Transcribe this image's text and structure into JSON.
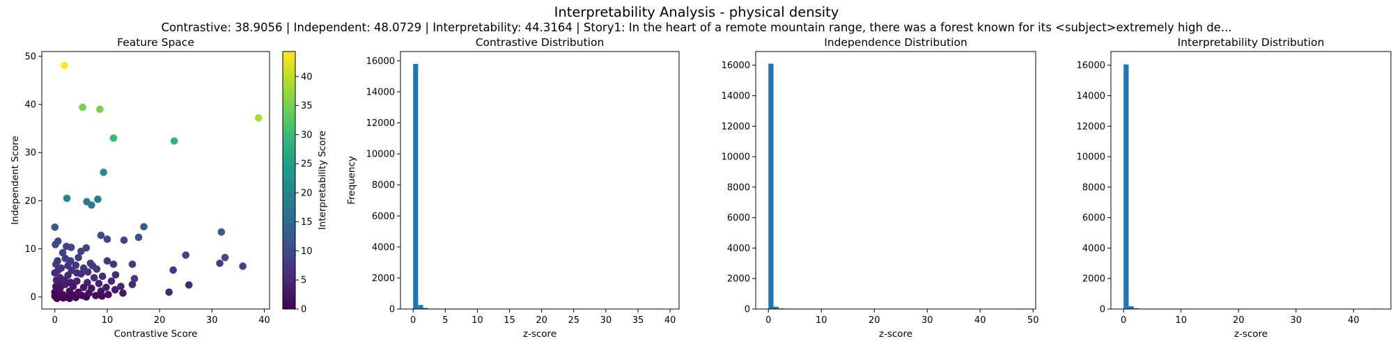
{
  "figure": {
    "title": "Interpretability Analysis - physical density",
    "subtitle": "Contrastive: 38.9056 | Independent: 48.0729 | Interpretability: 44.3164 | Story1: In the heart of a remote mountain range, there was a forest known for its <subject>extremely high de..."
  },
  "chart_data": [
    {
      "type": "scatter",
      "title": "Feature Space",
      "xlabel": "Contrastive Score",
      "ylabel": "Independent Score",
      "xlim": [
        -2.5,
        41
      ],
      "ylim": [
        -2.5,
        51
      ],
      "xticks": [
        0,
        10,
        20,
        30,
        40
      ],
      "yticks": [
        0,
        10,
        20,
        30,
        40,
        50
      ],
      "grid": false,
      "colorbar": {
        "label": "Interpretability Score",
        "colormap": "viridis",
        "range": [
          0,
          44.3
        ],
        "ticks": [
          0,
          5,
          10,
          15,
          20,
          25,
          30,
          35,
          40
        ]
      },
      "points": [
        {
          "x": 1.8,
          "y": 48.1,
          "c": 44.3
        },
        {
          "x": 38.9,
          "y": 37.2,
          "c": 38.5
        },
        {
          "x": 5.3,
          "y": 39.4,
          "c": 35.0
        },
        {
          "x": 8.6,
          "y": 39.0,
          "c": 35.0
        },
        {
          "x": 11.2,
          "y": 33.0,
          "c": 30.0
        },
        {
          "x": 22.8,
          "y": 32.4,
          "c": 29.0
        },
        {
          "x": 9.3,
          "y": 25.9,
          "c": 22.0
        },
        {
          "x": 2.3,
          "y": 20.5,
          "c": 20.0
        },
        {
          "x": 6.1,
          "y": 19.8,
          "c": 19.0
        },
        {
          "x": 8.2,
          "y": 20.3,
          "c": 19.0
        },
        {
          "x": 7.0,
          "y": 19.1,
          "c": 18.0
        },
        {
          "x": 17.0,
          "y": 14.6,
          "c": 13.0
        },
        {
          "x": 31.8,
          "y": 13.5,
          "c": 13.0
        },
        {
          "x": 0.0,
          "y": 14.5,
          "c": 12.0
        },
        {
          "x": 16.0,
          "y": 12.4,
          "c": 11.0
        },
        {
          "x": 8.8,
          "y": 12.8,
          "c": 10.0
        },
        {
          "x": 13.2,
          "y": 11.8,
          "c": 10.0
        },
        {
          "x": 10.0,
          "y": 12.0,
          "c": 9.5
        },
        {
          "x": 0.6,
          "y": 11.6,
          "c": 10.0
        },
        {
          "x": 0.1,
          "y": 10.9,
          "c": 9.5
        },
        {
          "x": 2.2,
          "y": 10.5,
          "c": 9.0
        },
        {
          "x": 3.1,
          "y": 10.3,
          "c": 9.0
        },
        {
          "x": 6.0,
          "y": 10.2,
          "c": 9.0
        },
        {
          "x": 5.0,
          "y": 9.5,
          "c": 8.5
        },
        {
          "x": 1.5,
          "y": 9.2,
          "c": 8.5
        },
        {
          "x": 35.9,
          "y": 6.4,
          "c": 9.0
        },
        {
          "x": 32.5,
          "y": 8.2,
          "c": 10.0
        },
        {
          "x": 31.5,
          "y": 7.0,
          "c": 9.0
        },
        {
          "x": 25.0,
          "y": 8.7,
          "c": 9.0
        },
        {
          "x": 14.8,
          "y": 6.8,
          "c": 8.0
        },
        {
          "x": 22.6,
          "y": 5.6,
          "c": 7.5
        },
        {
          "x": 15.2,
          "y": 3.8,
          "c": 7.0
        },
        {
          "x": 10.0,
          "y": 7.5,
          "c": 7.0
        },
        {
          "x": 11.2,
          "y": 6.8,
          "c": 7.0
        },
        {
          "x": 7.2,
          "y": 6.5,
          "c": 7.0
        },
        {
          "x": 8.0,
          "y": 5.8,
          "c": 7.0
        },
        {
          "x": 4.5,
          "y": 8.2,
          "c": 7.5
        },
        {
          "x": 3.0,
          "y": 7.5,
          "c": 7.5
        },
        {
          "x": 2.0,
          "y": 8.0,
          "c": 8.0
        },
        {
          "x": 0.5,
          "y": 7.5,
          "c": 7.0
        },
        {
          "x": 0.2,
          "y": 6.8,
          "c": 7.0
        },
        {
          "x": 1.2,
          "y": 6.0,
          "c": 6.5
        },
        {
          "x": 4.0,
          "y": 6.6,
          "c": 6.5
        },
        {
          "x": 6.3,
          "y": 5.2,
          "c": 6.0
        },
        {
          "x": 9.1,
          "y": 4.3,
          "c": 5.5
        },
        {
          "x": 11.6,
          "y": 4.6,
          "c": 5.5
        },
        {
          "x": 10.8,
          "y": 3.3,
          "c": 5.0
        },
        {
          "x": 12.6,
          "y": 2.2,
          "c": 4.5
        },
        {
          "x": 14.8,
          "y": 2.6,
          "c": 5.0
        },
        {
          "x": 25.6,
          "y": 2.5,
          "c": 5.0
        },
        {
          "x": 21.8,
          "y": 1.0,
          "c": 4.5
        },
        {
          "x": 3.2,
          "y": 5.5,
          "c": 6.0
        },
        {
          "x": 5.0,
          "y": 4.8,
          "c": 5.5
        },
        {
          "x": 7.5,
          "y": 4.0,
          "c": 5.0
        },
        {
          "x": 2.5,
          "y": 4.5,
          "c": 5.0
        },
        {
          "x": 1.0,
          "y": 4.0,
          "c": 4.5
        },
        {
          "x": 0.3,
          "y": 3.5,
          "c": 4.0
        },
        {
          "x": 4.2,
          "y": 3.3,
          "c": 4.0
        },
        {
          "x": 6.2,
          "y": 3.0,
          "c": 4.0
        },
        {
          "x": 8.4,
          "y": 2.8,
          "c": 4.0
        },
        {
          "x": 9.8,
          "y": 2.0,
          "c": 3.5
        },
        {
          "x": 11.5,
          "y": 1.5,
          "c": 3.0
        },
        {
          "x": 13.0,
          "y": 0.8,
          "c": 3.0
        },
        {
          "x": 2.0,
          "y": 2.6,
          "c": 3.0
        },
        {
          "x": 3.5,
          "y": 2.2,
          "c": 2.5
        },
        {
          "x": 5.5,
          "y": 2.0,
          "c": 2.5
        },
        {
          "x": 7.0,
          "y": 1.8,
          "c": 2.5
        },
        {
          "x": 8.8,
          "y": 1.2,
          "c": 2.0
        },
        {
          "x": 1.0,
          "y": 1.8,
          "c": 2.0
        },
        {
          "x": 0.2,
          "y": 2.2,
          "c": 2.0
        },
        {
          "x": 2.8,
          "y": 1.2,
          "c": 1.5
        },
        {
          "x": 4.5,
          "y": 1.0,
          "c": 1.5
        },
        {
          "x": 6.5,
          "y": 0.8,
          "c": 1.2
        },
        {
          "x": 10.2,
          "y": 0.5,
          "c": 1.5
        },
        {
          "x": 1.5,
          "y": 0.5,
          "c": 1.0
        },
        {
          "x": 0.5,
          "y": 0.8,
          "c": 1.0
        },
        {
          "x": 3.5,
          "y": 0.4,
          "c": 0.8
        },
        {
          "x": 5.2,
          "y": 0.3,
          "c": 0.8
        },
        {
          "x": 7.8,
          "y": 0.3,
          "c": 0.8
        },
        {
          "x": 0.0,
          "y": 0.2,
          "c": 0.5
        },
        {
          "x": 1.0,
          "y": 0.1,
          "c": 0.5
        },
        {
          "x": 2.2,
          "y": 0.0,
          "c": 0.5
        },
        {
          "x": 4.0,
          "y": -0.1,
          "c": 0.5
        },
        {
          "x": 6.0,
          "y": 0.0,
          "c": 0.6
        },
        {
          "x": 9.0,
          "y": 0.2,
          "c": 0.8
        },
        {
          "x": 0.4,
          "y": -0.3,
          "c": 0.3
        },
        {
          "x": 1.6,
          "y": -0.2,
          "c": 0.3
        },
        {
          "x": 2.8,
          "y": -0.3,
          "c": 0.3
        },
        {
          "x": 0.0,
          "y": 1.0,
          "c": 1.0
        },
        {
          "x": 0.8,
          "y": 2.8,
          "c": 2.5
        },
        {
          "x": 1.8,
          "y": 3.5,
          "c": 3.5
        },
        {
          "x": 3.0,
          "y": 3.0,
          "c": 3.0
        },
        {
          "x": 0.0,
          "y": 5.0,
          "c": 5.0
        },
        {
          "x": 0.6,
          "y": 5.5,
          "c": 5.5
        },
        {
          "x": 5.5,
          "y": 6.0,
          "c": 6.5
        },
        {
          "x": 6.8,
          "y": 7.0,
          "c": 7.5
        },
        {
          "x": 4.2,
          "y": 5.0,
          "c": 5.5
        },
        {
          "x": 2.5,
          "y": 6.5,
          "c": 6.5
        }
      ]
    },
    {
      "type": "bar",
      "title": "Contrastive Distribution",
      "xlabel": "z-score",
      "ylabel": "Frequency",
      "xlim": [
        -1.97,
        41.4
      ],
      "ylim": [
        0,
        16600
      ],
      "xticks": [
        0,
        5,
        10,
        15,
        20,
        25,
        30,
        35,
        40
      ],
      "yticks": [
        0,
        2000,
        4000,
        6000,
        8000,
        10000,
        12000,
        14000,
        16000
      ],
      "bin_start": 0,
      "bin_width": 0.778,
      "color": "#1f77b4",
      "counts": [
        15800,
        260,
        70,
        30,
        14,
        8,
        5,
        3,
        2,
        1,
        1,
        1,
        1,
        0,
        0,
        0,
        0,
        0,
        0,
        0,
        0,
        0,
        0,
        0,
        0,
        0,
        0,
        0,
        0,
        0,
        0,
        0,
        0,
        0,
        0,
        0,
        0,
        0,
        0,
        0,
        0,
        0,
        0,
        0,
        0,
        0,
        0,
        0,
        0,
        1
      ]
    },
    {
      "type": "bar",
      "title": "Independence Distribution",
      "xlabel": "z-score",
      "ylabel": "",
      "xlim": [
        -2.4,
        50.5
      ],
      "ylim": [
        0,
        16900
      ],
      "xticks": [
        0,
        10,
        20,
        30,
        40,
        50
      ],
      "yticks": [
        0,
        2000,
        4000,
        6000,
        8000,
        10000,
        12000,
        14000,
        16000
      ],
      "bin_start": 0,
      "bin_width": 0.96,
      "color": "#1f77b4",
      "counts": [
        16100,
        150,
        45,
        18,
        9,
        5,
        3,
        2,
        1,
        1,
        1,
        0,
        0,
        0,
        0,
        0,
        0,
        0,
        0,
        0,
        0,
        0,
        0,
        0,
        0,
        0,
        0,
        0,
        0,
        0,
        0,
        0,
        0,
        0,
        0,
        0,
        0,
        0,
        0,
        0,
        0,
        0,
        0,
        0,
        0,
        0,
        0,
        0,
        0,
        1
      ]
    },
    {
      "type": "bar",
      "title": "Interpretability Distribution",
      "xlabel": "z-score",
      "ylabel": "",
      "xlim": [
        -2.2,
        46.5
      ],
      "ylim": [
        0,
        16900
      ],
      "xticks": [
        0,
        10,
        20,
        30,
        40
      ],
      "yticks": [
        0,
        2000,
        4000,
        6000,
        8000,
        10000,
        12000,
        14000,
        16000
      ],
      "bin_start": 0,
      "bin_width": 0.886,
      "color": "#1f77b4",
      "counts": [
        16050,
        180,
        50,
        20,
        10,
        6,
        4,
        2,
        1,
        1,
        1,
        0,
        0,
        0,
        0,
        0,
        0,
        0,
        0,
        0,
        0,
        0,
        0,
        0,
        0,
        0,
        0,
        0,
        0,
        0,
        0,
        0,
        0,
        0,
        0,
        0,
        0,
        0,
        0,
        0,
        0,
        0,
        0,
        0,
        0,
        0,
        0,
        0,
        0,
        1
      ]
    }
  ]
}
